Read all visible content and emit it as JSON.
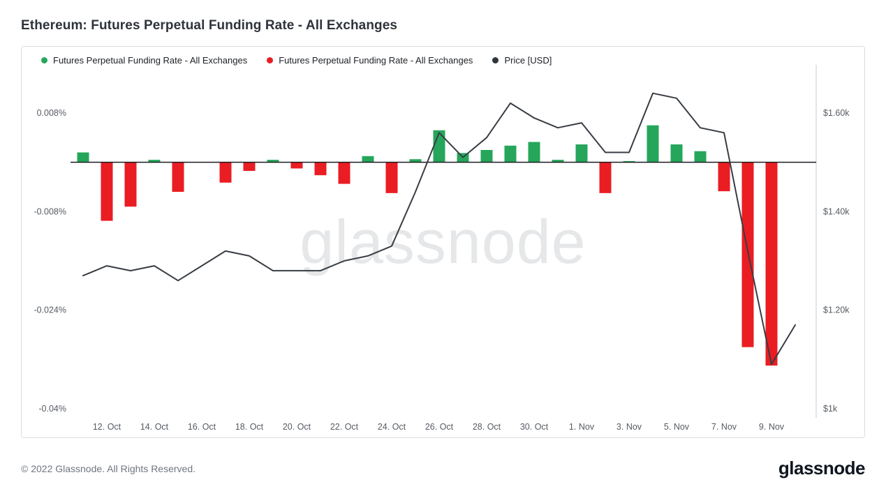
{
  "page": {
    "title": "Ethereum: Futures Perpetual Funding Rate - All Exchanges",
    "watermark": "glassnode",
    "footer_copyright": "© 2022 Glassnode. All Rights Reserved.",
    "footer_logo": "glassnode"
  },
  "legend": {
    "items": [
      {
        "label": "Futures Perpetual Funding Rate - All Exchanges",
        "color": "#26a65b"
      },
      {
        "label": "Futures Perpetual Funding Rate - All Exchanges",
        "color": "#ea1d23"
      },
      {
        "label": "Price [USD]",
        "color": "#30353b"
      }
    ]
  },
  "chart_data": {
    "type": "bar",
    "title": "Ethereum: Futures Perpetual Funding Rate - All Exchanges",
    "legend_position": "top-left",
    "grid": false,
    "x": [
      "11 Oct",
      "12 Oct",
      "13 Oct",
      "14 Oct",
      "15 Oct",
      "16 Oct",
      "17 Oct",
      "18 Oct",
      "19 Oct",
      "20 Oct",
      "21 Oct",
      "22 Oct",
      "23 Oct",
      "24 Oct",
      "25 Oct",
      "26 Oct",
      "27 Oct",
      "28 Oct",
      "29 Oct",
      "30 Oct",
      "31 Oct",
      "1 Nov",
      "2 Nov",
      "3 Nov",
      "4 Nov",
      "5 Nov",
      "6 Nov",
      "7 Nov",
      "8 Nov",
      "9 Nov",
      "10 Nov"
    ],
    "series": [
      {
        "name": "Futures Perpetual Funding Rate - All Exchanges",
        "type": "bar",
        "unit": "%",
        "color_positive": "#26a65b",
        "color_negative": "#ea1d23",
        "values": [
          0.0016,
          -0.0095,
          -0.0072,
          0.0004,
          -0.0048,
          0,
          -0.0033,
          -0.0014,
          0.0004,
          -0.001,
          -0.0021,
          -0.0035,
          0.001,
          -0.005,
          0.0005,
          0.0052,
          0.0015,
          0.002,
          0.0027,
          0.0033,
          0.0004,
          0.0029,
          -0.005,
          0.0002,
          0.006,
          0.0029,
          0.0018,
          -0.0047,
          -0.03,
          -0.033,
          null
        ]
      },
      {
        "name": "Price [USD]",
        "type": "line",
        "unit": "$k",
        "color": "#383d44",
        "values": [
          1.27,
          1.29,
          1.28,
          1.29,
          1.26,
          1.29,
          1.32,
          1.31,
          1.28,
          1.28,
          1.28,
          1.3,
          1.31,
          1.33,
          1.44,
          1.56,
          1.51,
          1.55,
          1.62,
          1.59,
          1.57,
          1.58,
          1.52,
          1.52,
          1.64,
          1.63,
          1.57,
          1.56,
          1.32,
          1.09,
          1.17
        ]
      }
    ],
    "left_axis": {
      "ticks": [
        {
          "label": "0.008%",
          "value": 0.008
        },
        {
          "label": "-0.008%",
          "value": -0.008
        },
        {
          "label": "-0.024%",
          "value": -0.024
        },
        {
          "label": "-0.04%",
          "value": -0.04
        }
      ]
    },
    "right_axis": {
      "ticks": [
        {
          "label": "$1.60k",
          "value": 1.6
        },
        {
          "label": "$1.40k",
          "value": 1.4
        },
        {
          "label": "$1.20k",
          "value": 1.2
        },
        {
          "label": "$1k",
          "value": 1.0
        }
      ]
    },
    "x_ticks": [
      {
        "label": "12. Oct",
        "index": 1
      },
      {
        "label": "14. Oct",
        "index": 3
      },
      {
        "label": "16. Oct",
        "index": 5
      },
      {
        "label": "18. Oct",
        "index": 7
      },
      {
        "label": "20. Oct",
        "index": 9
      },
      {
        "label": "22. Oct",
        "index": 11
      },
      {
        "label": "24. Oct",
        "index": 13
      },
      {
        "label": "26. Oct",
        "index": 15
      },
      {
        "label": "28. Oct",
        "index": 17
      },
      {
        "label": "30. Oct",
        "index": 19
      },
      {
        "label": "1. Nov",
        "index": 21
      },
      {
        "label": "3. Nov",
        "index": 23
      },
      {
        "label": "5. Nov",
        "index": 25
      },
      {
        "label": "7. Nov",
        "index": 27
      },
      {
        "label": "9. Nov",
        "index": 29
      }
    ]
  }
}
